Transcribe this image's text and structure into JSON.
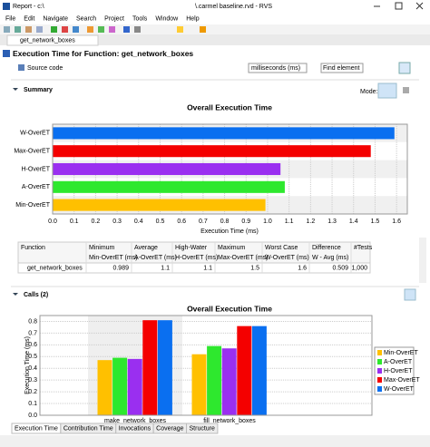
{
  "window": {
    "title_left": "Report - c:\\",
    "title_right": "\\.carmel baseline.rvd - RVS"
  },
  "menu": [
    "File",
    "Edit",
    "Navigate",
    "Search",
    "Project",
    "Tools",
    "Window",
    "Help"
  ],
  "editor_tab": "get_network_boxes",
  "header": {
    "title": "Execution Time for Function: get_network_boxes",
    "source_code": "Source code",
    "unit_select": "milliseconds (ms)",
    "find": "Find element"
  },
  "summary": {
    "label": "Summary",
    "mode": "Mode:"
  },
  "table": {
    "headers": [
      "Function",
      "Minimum",
      "Average",
      "High-Water",
      "Maximum",
      "Worst Case",
      "Difference",
      "#Tests"
    ],
    "subheaders": [
      "Min-OverET (ms)",
      "A-OverET (ms)",
      "H-OverET (ms)",
      "Max-OverET (ms)",
      "W-OverET (ms)",
      "W - Avg (ms)"
    ],
    "rows": [
      [
        "get_network_boxes",
        0.989,
        1.1,
        1.1,
        1.5,
        1.6,
        0.509,
        "1,000"
      ]
    ]
  },
  "calls": {
    "label": "Calls (2)"
  },
  "bottom_tabs": [
    "Execution Time",
    "Contribution Time",
    "Invocations",
    "Coverage",
    "Structure"
  ],
  "chart_data": [
    {
      "type": "bar",
      "orientation": "horizontal",
      "title": "Overall Execution Time",
      "categories": [
        "W-OverET",
        "Max-OverET",
        "H-OverET",
        "A-OverET",
        "Min-OverET"
      ],
      "values": [
        1.59,
        1.48,
        1.06,
        1.08,
        0.99
      ],
      "colors": [
        "#0a6ff0",
        "#f40000",
        "#9a2ff0",
        "#2ee82e",
        "#ffc000"
      ],
      "xlabel": "Execution Time (ms)",
      "xlim": [
        0,
        1.65
      ],
      "xticks": [
        {
          "value": 0,
          "label": "0.0"
        },
        0.1,
        0.2,
        0.3,
        0.4,
        0.5,
        0.6,
        0.7,
        0.8,
        0.9,
        {
          "value": 1,
          "label": "1.0"
        },
        1.1,
        1.2,
        1.3,
        1.4,
        1.5,
        1.6
      ],
      "grid": true
    },
    {
      "type": "bar",
      "orientation": "vertical",
      "title": "Overall Execution Time",
      "categories": [
        "make_network_boxes",
        "fill_network_boxes"
      ],
      "series": [
        {
          "name": "Min-OverET",
          "color": "#ffc000",
          "values": [
            0.47,
            0.52
          ]
        },
        {
          "name": "A-OverET",
          "color": "#2ee82e",
          "values": [
            0.49,
            0.59
          ]
        },
        {
          "name": "H-OverET",
          "color": "#9a2ff0",
          "values": [
            0.48,
            0.57
          ]
        },
        {
          "name": "Max-OverET",
          "color": "#f40000",
          "values": [
            0.81,
            0.76
          ]
        },
        {
          "name": "W-OverET",
          "color": "#0a6ff0",
          "values": [
            0.81,
            0.76
          ]
        }
      ],
      "ylabel": "Execution Time (ms)",
      "ylim": [
        0,
        0.85
      ],
      "yticks": [
        {
          "value": 0,
          "label": "0.0"
        },
        0.1,
        0.2,
        0.3,
        0.4,
        0.5,
        0.6,
        0.7,
        0.8
      ],
      "legend": "right",
      "grid": true
    }
  ]
}
